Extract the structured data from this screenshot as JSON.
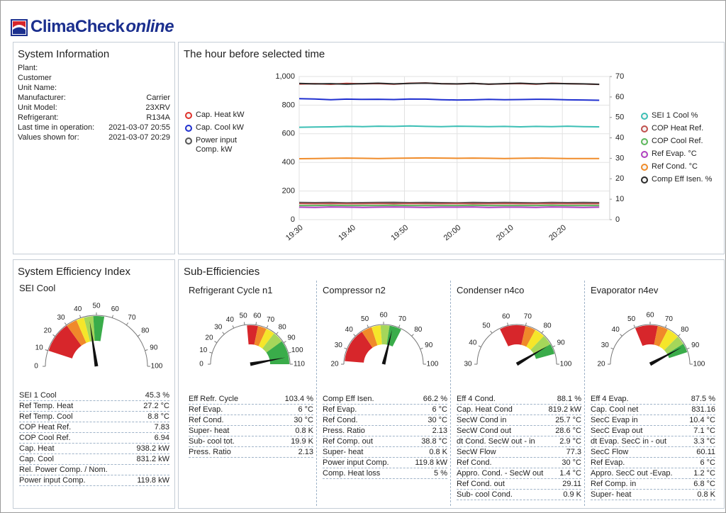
{
  "header": {
    "brand": "ClimaCheck",
    "brand_suffix": "online"
  },
  "system_info": {
    "title": "System Information",
    "rows": [
      [
        "Plant:"
      ],
      [
        "Customer"
      ],
      [
        "Unit Name:"
      ],
      [
        "Manufacturer:",
        "Carrier"
      ],
      [
        "Unit Model:",
        "23XRV"
      ],
      [
        "Refrigerant:",
        "R134A"
      ],
      [
        "Last time in operation:",
        "2021-03-07 20:55"
      ],
      [
        "Values shown for:",
        "2021-03-07 20:29"
      ]
    ]
  },
  "chart_data": {
    "type": "line",
    "title": "The hour before selected time",
    "x": [
      "19:30",
      "19:33",
      "19:36",
      "19:39",
      "19:42",
      "19:45",
      "19:48",
      "19:51",
      "19:54",
      "19:57",
      "20:00",
      "20:03",
      "20:06",
      "20:09",
      "20:12",
      "20:15",
      "20:18",
      "20:21",
      "20:24",
      "20:27"
    ],
    "xlim": [
      "19:30",
      "20:29"
    ],
    "xticks": [
      "19:30",
      "19:40",
      "19:50",
      "20:00",
      "20:10",
      "20:20"
    ],
    "ylim": [
      0,
      1000
    ],
    "yticks": [
      0,
      200,
      400,
      600,
      800,
      {
        "value": 1000,
        "label": "1,000"
      }
    ],
    "y2lim": [
      0,
      70
    ],
    "y2ticks": [
      0,
      10,
      20,
      30,
      40,
      50,
      60,
      70
    ],
    "grid": true,
    "series": [
      {
        "name": "Cap. Heat kW",
        "color": "#e0322b",
        "values": [
          948,
          950,
          946,
          952,
          949,
          951,
          947,
          953,
          955,
          950,
          948,
          952,
          946,
          949,
          951,
          947,
          953,
          950,
          948,
          945
        ]
      },
      {
        "name": "Cap. Cool kW",
        "color": "#2030d0",
        "values": [
          845,
          843,
          838,
          842,
          840,
          841,
          839,
          843,
          842,
          838,
          836,
          837,
          840,
          838,
          839,
          841,
          840,
          837,
          836,
          834
        ]
      },
      {
        "name": "Power input Comp. kW",
        "color": "#555555",
        "values": [
          120,
          119,
          120,
          118,
          119,
          120,
          121,
          119,
          120,
          119,
          118,
          120,
          119,
          120,
          119,
          118,
          120,
          119,
          120,
          119
        ]
      },
      {
        "name": "SEI 1 Cool %",
        "color": "#3cbfb5",
        "axis": "y2",
        "values": [
          45.2,
          45.3,
          45.4,
          45.6,
          45.5,
          45.7,
          45.6,
          45.8,
          45.6,
          45.5,
          45.7,
          45.6,
          45.5,
          45.6,
          45.4,
          45.6,
          45.5,
          45.7,
          45.5,
          45.4
        ]
      },
      {
        "name": "COP Heat Ref.",
        "color": "#c0504d",
        "axis": "y2",
        "values": [
          7.9,
          7.8,
          7.9,
          7.8,
          7.8,
          7.9,
          7.8,
          7.9,
          7.8,
          7.8,
          7.9,
          7.8,
          7.8,
          7.9,
          7.8,
          7.8,
          7.9,
          7.8,
          7.8,
          7.8
        ]
      },
      {
        "name": "COP Cool Ref.",
        "color": "#5cb85c",
        "axis": "y2",
        "values": [
          6.9,
          6.9,
          7.0,
          6.9,
          6.9,
          6.9,
          7.0,
          6.9,
          6.9,
          6.9,
          6.9,
          7.0,
          6.9,
          6.9,
          6.9,
          6.9,
          7.0,
          6.9,
          6.9,
          6.9
        ]
      },
      {
        "name": "Ref Evap. °C",
        "color": "#b040c0",
        "axis": "y2",
        "values": [
          6.1,
          6.0,
          6.2,
          6.1,
          6.0,
          6.1,
          6.2,
          6.1,
          6.0,
          6.1,
          6.1,
          6.2,
          6.0,
          6.1,
          6.1,
          6.0,
          6.2,
          6.1,
          6.0,
          6.1
        ]
      },
      {
        "name": "Ref Cond. °C",
        "color": "#f08c2a",
        "axis": "y2",
        "values": [
          29.8,
          29.9,
          30.0,
          30.1,
          30.0,
          29.9,
          30.0,
          30.1,
          30.2,
          30.1,
          30.0,
          30.1,
          30.0,
          29.9,
          30.0,
          30.1,
          30.0,
          29.9,
          29.9,
          29.9
        ]
      },
      {
        "name": "Comp Eff Isen. %",
        "color": "#2a2a2a",
        "axis": "y2",
        "values": [
          66.6,
          66.4,
          66.5,
          66.3,
          66.5,
          66.7,
          66.4,
          66.6,
          66.8,
          66.5,
          66.4,
          66.6,
          66.3,
          66.5,
          66.7,
          66.4,
          66.6,
          66.5,
          66.4,
          66.2
        ]
      }
    ]
  },
  "sei": {
    "title": "System Efficiency Index",
    "subtitle": "SEI Cool",
    "gauge": {
      "lim": [
        0,
        100
      ],
      "ticks": [
        0,
        10,
        20,
        30,
        40,
        50,
        60,
        70,
        80,
        90,
        100
      ],
      "value": 45.3,
      "bands": [
        {
          "from": 10,
          "to": 30,
          "color": "#d7262b"
        },
        {
          "from": 30,
          "to": 37,
          "color": "#f0892a"
        },
        {
          "from": 37,
          "to": 42,
          "color": "#f5e62a"
        },
        {
          "from": 42,
          "to": 48,
          "color": "#a5d65a"
        },
        {
          "from": 48,
          "to": 55,
          "color": "#3aac4a"
        }
      ]
    },
    "rows": [
      [
        "SEI 1 Cool",
        "45.3 %"
      ],
      [
        "Ref Temp. Heat",
        "27.2 °C"
      ],
      [
        "Ref Temp. Cool",
        "8.8 °C"
      ],
      [
        "COP Heat Ref.",
        "7.83"
      ],
      [
        "COP Cool Ref.",
        "6.94"
      ],
      [
        "Cap. Heat",
        "938.2 kW"
      ],
      [
        "Cap. Cool",
        "831.2 kW"
      ],
      [
        "Rel. Power Comp. / Nom."
      ],
      [
        "Power input Comp.",
        "119.8 kW"
      ]
    ]
  },
  "sub_efficiencies": {
    "title": "Sub-Efficiencies",
    "panels": [
      {
        "title": "Refrigerant Cycle n1",
        "gauge": {
          "lim": [
            0,
            110
          ],
          "ticks": [
            0,
            10,
            20,
            30,
            40,
            50,
            60,
            70,
            80,
            90,
            100,
            110
          ],
          "value": 103.4,
          "bands": [
            {
              "from": 52,
              "to": 62,
              "color": "#d7262b"
            },
            {
              "from": 62,
              "to": 70,
              "color": "#f0892a"
            },
            {
              "from": 70,
              "to": 78,
              "color": "#f5e62a"
            },
            {
              "from": 78,
              "to": 88,
              "color": "#a5d65a"
            },
            {
              "from": 88,
              "to": 110,
              "color": "#3aac4a"
            }
          ]
        },
        "rows": [
          [
            "Eff Refr. Cycle",
            "103.4 %"
          ],
          [
            "Ref Evap.",
            "6 °C"
          ],
          [
            "Ref Cond.",
            "30 °C"
          ],
          [
            "Super- heat",
            "0.8 K"
          ],
          [
            "Sub- cool tot.",
            "19.9 K"
          ],
          [
            "Press. Ratio",
            "2.13"
          ]
        ]
      },
      {
        "title": "Compressor n2",
        "gauge": {
          "lim": [
            20,
            100
          ],
          "ticks": [
            20,
            30,
            40,
            50,
            60,
            70,
            80,
            90,
            100
          ],
          "value": 66.2,
          "bands": [
            {
              "from": 22,
              "to": 45,
              "color": "#d7262b"
            },
            {
              "from": 45,
              "to": 52,
              "color": "#f0892a"
            },
            {
              "from": 52,
              "to": 58,
              "color": "#f5e62a"
            },
            {
              "from": 58,
              "to": 64,
              "color": "#a5d65a"
            },
            {
              "from": 64,
              "to": 72,
              "color": "#3aac4a"
            }
          ]
        },
        "rows": [
          [
            "Comp Eff Isen.",
            "66.2 %"
          ],
          [
            "Ref Evap.",
            "6 °C"
          ],
          [
            "Ref Cond.",
            "30 °C"
          ],
          [
            "Press. Ratio",
            "2.13"
          ],
          [
            "Ref Comp. out",
            "38.8 °C"
          ],
          [
            "Super- heat",
            "0.8 K"
          ],
          [
            "Power input Comp.",
            "119.8 kW"
          ],
          [
            "Comp. Heat loss",
            "5 %"
          ]
        ]
      },
      {
        "title": "Condenser n4co",
        "gauge": {
          "lim": [
            30,
            100
          ],
          "ticks": [
            30,
            40,
            50,
            60,
            70,
            80,
            90,
            100
          ],
          "value": 88.1,
          "bands": [
            {
              "from": 55,
              "to": 70,
              "color": "#d7262b"
            },
            {
              "from": 70,
              "to": 76,
              "color": "#f0892a"
            },
            {
              "from": 76,
              "to": 82,
              "color": "#f5e62a"
            },
            {
              "from": 82,
              "to": 88,
              "color": "#a5d65a"
            },
            {
              "from": 88,
              "to": 94,
              "color": "#3aac4a"
            }
          ]
        },
        "rows": [
          [
            "Eff 4 Cond.",
            "88.1 %"
          ],
          [
            "Cap. Heat Cond",
            "819.2 kW"
          ],
          [
            "SecW Cond in",
            "25.7 °C"
          ],
          [
            "SecW Cond out",
            "28.6 °C"
          ],
          [
            "dt Cond. SecW out - in",
            "2.9 °C"
          ],
          [
            "SecW Flow",
            "77.3"
          ],
          [
            "Ref Cond.",
            "30 °C"
          ],
          [
            "Appro. Cond. - SecW out",
            "1.4 °C"
          ],
          [
            "Ref Cond. out",
            "29.11"
          ],
          [
            "Sub- cool Cond.",
            "0.9 K"
          ]
        ]
      },
      {
        "title": "Evaporator n4ev",
        "gauge": {
          "lim": [
            20,
            100
          ],
          "ticks": [
            20,
            30,
            40,
            50,
            60,
            70,
            80,
            90,
            100
          ],
          "value": 87.5,
          "bands": [
            {
              "from": 50,
              "to": 65,
              "color": "#d7262b"
            },
            {
              "from": 65,
              "to": 72,
              "color": "#f0892a"
            },
            {
              "from": 72,
              "to": 80,
              "color": "#f5e62a"
            },
            {
              "from": 80,
              "to": 86,
              "color": "#a5d65a"
            },
            {
              "from": 86,
              "to": 92,
              "color": "#3aac4a"
            }
          ]
        },
        "rows": [
          [
            "Eff 4 Evap.",
            "87.5 %"
          ],
          [
            "Cap. Cool net",
            "831.16"
          ],
          [
            "SecC Evap in",
            "10.4 °C"
          ],
          [
            "SecC Evap out",
            "7.1 °C"
          ],
          [
            "dt Evap. SecC in - out",
            "3.3 °C"
          ],
          [
            "SecC Flow",
            "60.11"
          ],
          [
            "Ref Evap.",
            "6 °C"
          ],
          [
            "Appro. SecC out -Evap.",
            "1.2 °C"
          ],
          [
            "Ref Comp. in",
            "6.8 °C"
          ],
          [
            "Super- heat",
            "0.8 K"
          ]
        ]
      }
    ]
  }
}
